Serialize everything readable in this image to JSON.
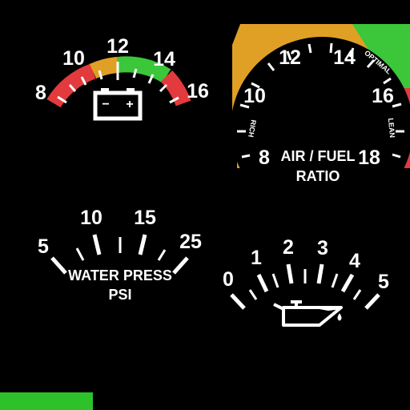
{
  "colors": {
    "red": "#e23a3d",
    "amber": "#e0a025",
    "green": "#3cc63a",
    "white": "#ffffff",
    "bar": "#2dc12a"
  },
  "voltmeter": {
    "ticks": [
      "8",
      "10",
      "12",
      "14",
      "16"
    ],
    "icon": "battery-icon",
    "battery_minus": "−",
    "battery_plus": "+"
  },
  "air_fuel": {
    "ticks": [
      "8",
      "10",
      "12",
      "14",
      "16",
      "18"
    ],
    "label_line1": "AIR / FUEL",
    "label_line2": "RATIO",
    "zone_rich": "RICH",
    "zone_optimal": "OPTIMAL",
    "zone_lean": "LEAN"
  },
  "water_press": {
    "ticks": [
      "5",
      "10",
      "15",
      "25"
    ],
    "label_line1": "WATER PRESS",
    "label_line2": "PSI"
  },
  "oil": {
    "ticks": [
      "0",
      "1",
      "2",
      "3",
      "4",
      "5"
    ],
    "icon": "oil-can-icon"
  },
  "indicator_bar": {
    "color": "green"
  }
}
